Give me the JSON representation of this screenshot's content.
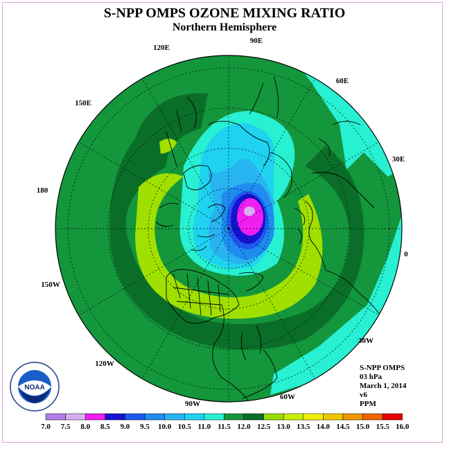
{
  "title": "S-NPP OMPS OZONE MIXING RATIO",
  "subtitle": "Northern Hemisphere",
  "lon_labels": [
    "90E",
    "60E",
    "30E",
    "0",
    "30W",
    "60W",
    "90W",
    "120W",
    "150W",
    "180",
    "150E",
    "120E"
  ],
  "info": {
    "line1": "S-NPP OMPS",
    "line2": "03 hPa",
    "line3": "March 1, 2014",
    "line4": "v6",
    "line5": "PPM"
  },
  "logo": {
    "text": "NOAA",
    "ring_text": "NATIONAL OCEANIC AND ATMOSPHERIC ADMINISTRATION · U.S. DEPARTMENT OF COMMERCE"
  },
  "colorbar": {
    "ticks": [
      "7.0",
      "7.5",
      "8.0",
      "8.5",
      "9.0",
      "9.5",
      "10.0",
      "10.5",
      "11.0",
      "11.5",
      "12.0",
      "12.5",
      "13.0",
      "13.5",
      "14.0",
      "14.5",
      "15.0",
      "15.5",
      "16.0"
    ],
    "colors": [
      "#b07ee8",
      "#d6aef0",
      "#f01ef0",
      "#1414d2",
      "#1e5af0",
      "#1e8cf0",
      "#28b4f0",
      "#1ed2f0",
      "#28f0d2",
      "#14963c",
      "#0a6e28",
      "#96dc00",
      "#c8f000",
      "#f0f000",
      "#f0c800",
      "#f09600",
      "#f06400",
      "#e60000",
      "#8c5a32"
    ]
  },
  "colors": {
    "dark_green": "#0a6e28",
    "green": "#14963c",
    "lime": "#a0e000",
    "cyan": "#28f0d2",
    "light_blue": "#1ed2f0",
    "sky": "#28b4f0",
    "blue": "#1e8cf0",
    "mid_blue": "#1e5af0",
    "navy": "#1414d2",
    "magenta": "#f01ef0",
    "lavender": "#d6aef0"
  }
}
